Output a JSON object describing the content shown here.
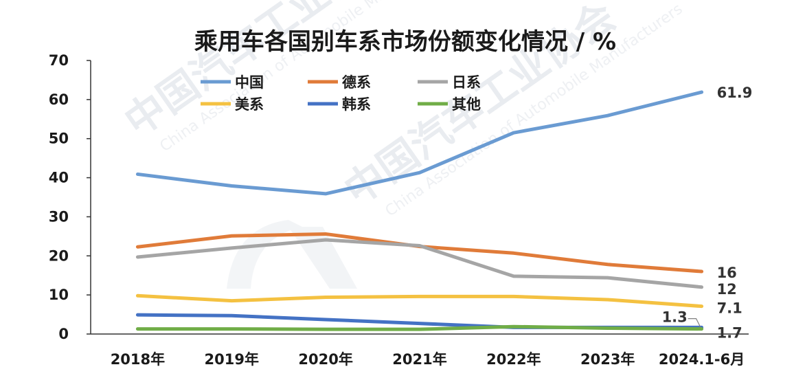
{
  "chart_data": {
    "type": "line",
    "title": "乘用车各国别车系市场份额变化情况 / %",
    "categories": [
      "2018年",
      "2019年",
      "2020年",
      "2021年",
      "2022年",
      "2023年",
      "2024.1-6月"
    ],
    "ylim": [
      0,
      70
    ],
    "yticks": [
      "0",
      "10",
      "20",
      "30",
      "40",
      "50",
      "60",
      "70"
    ],
    "grid": false,
    "legend_position": "top",
    "series": [
      {
        "name": "中国",
        "color": "#6a9bd2",
        "values": [
          40.9,
          37.9,
          35.9,
          41.3,
          51.5,
          55.9,
          61.9
        ],
        "end_label": "61.9"
      },
      {
        "name": "德系",
        "color": "#e07b39",
        "values": [
          22.3,
          25.1,
          25.6,
          22.4,
          20.7,
          17.8,
          16.0
        ],
        "end_label": "16"
      },
      {
        "name": "日系",
        "color": "#a5a5a5",
        "values": [
          19.7,
          22.0,
          24.1,
          22.6,
          14.8,
          14.4,
          12.0
        ],
        "end_label": "12"
      },
      {
        "name": "美系",
        "color": "#f4c141",
        "values": [
          9.8,
          8.5,
          9.4,
          9.6,
          9.6,
          8.8,
          7.1
        ],
        "end_label": "7.1"
      },
      {
        "name": "韩系",
        "color": "#4472c4",
        "values": [
          4.9,
          4.7,
          3.7,
          2.7,
          1.7,
          1.7,
          1.7
        ],
        "end_label": "1.7"
      },
      {
        "name": "其他",
        "color": "#70ad47",
        "values": [
          1.3,
          1.3,
          1.2,
          1.2,
          1.9,
          1.5,
          1.3
        ],
        "end_label": "1.3"
      }
    ]
  },
  "watermark": {
    "cn": "中国汽车工业协会",
    "en": "China Association of Automobile Manufacturers"
  }
}
